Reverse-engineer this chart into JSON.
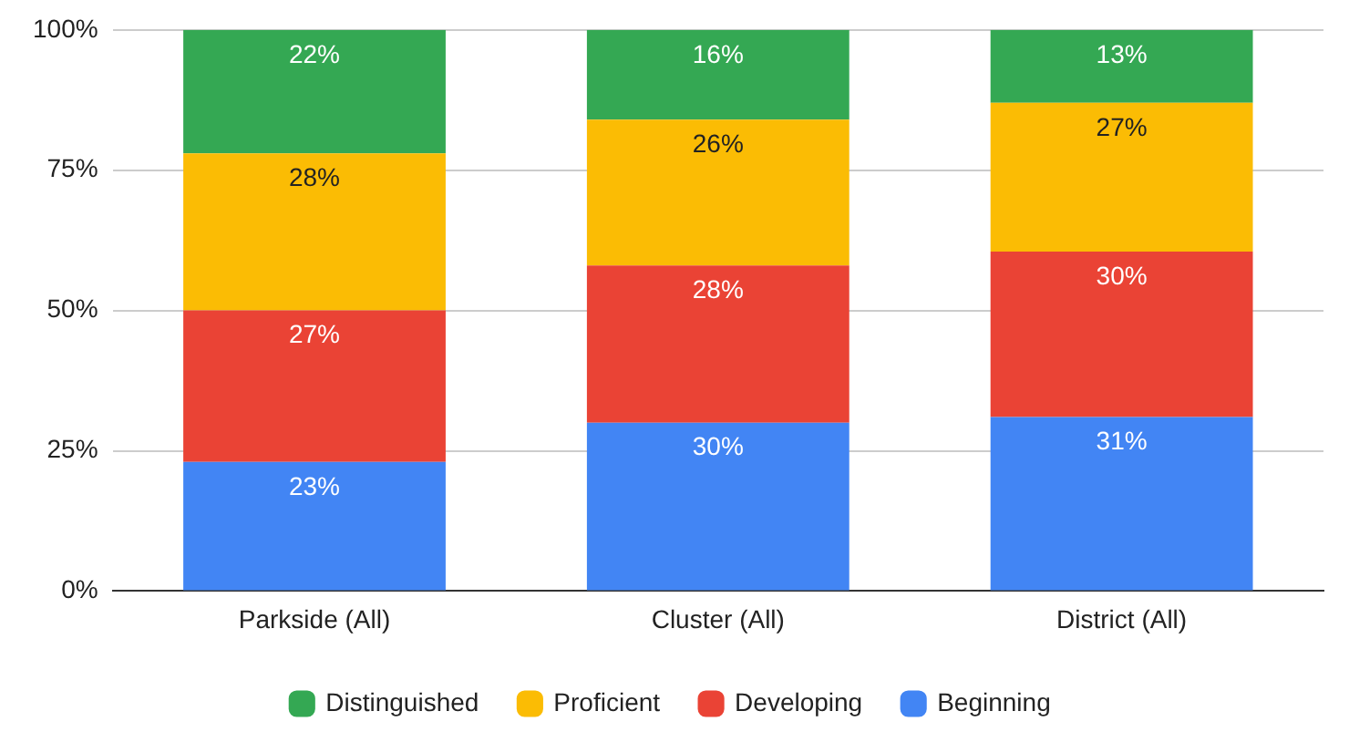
{
  "chart_data": {
    "type": "bar",
    "stacked": true,
    "categories": [
      "Parkside (All)",
      "Cluster (All)",
      "District (All)"
    ],
    "series": [
      {
        "name": "Beginning",
        "color": "#4285f4",
        "values": [
          23,
          30,
          31
        ],
        "value_labels": [
          "23%",
          "30%",
          "31%"
        ]
      },
      {
        "name": "Developing",
        "color": "#ea4335",
        "values": [
          27,
          28,
          29.5
        ],
        "value_labels": [
          "27%",
          "28%",
          "30%"
        ]
      },
      {
        "name": "Proficient",
        "color": "#fbbc04",
        "values": [
          28,
          26,
          26.5
        ],
        "value_labels": [
          "28%",
          "26%",
          "27%"
        ]
      },
      {
        "name": "Distinguished",
        "color": "#34a853",
        "values": [
          22,
          16,
          13
        ],
        "value_labels": [
          "22%",
          "16%",
          "13%"
        ]
      }
    ],
    "ylim": [
      0,
      100
    ],
    "yticks": [
      {
        "value": 0,
        "label": "0%"
      },
      {
        "value": 25,
        "label": "25%"
      },
      {
        "value": 50,
        "label": "50%"
      },
      {
        "value": 75,
        "label": "75%"
      },
      {
        "value": 100,
        "label": "100%"
      }
    ],
    "grid": "y",
    "legend": "bottom"
  }
}
